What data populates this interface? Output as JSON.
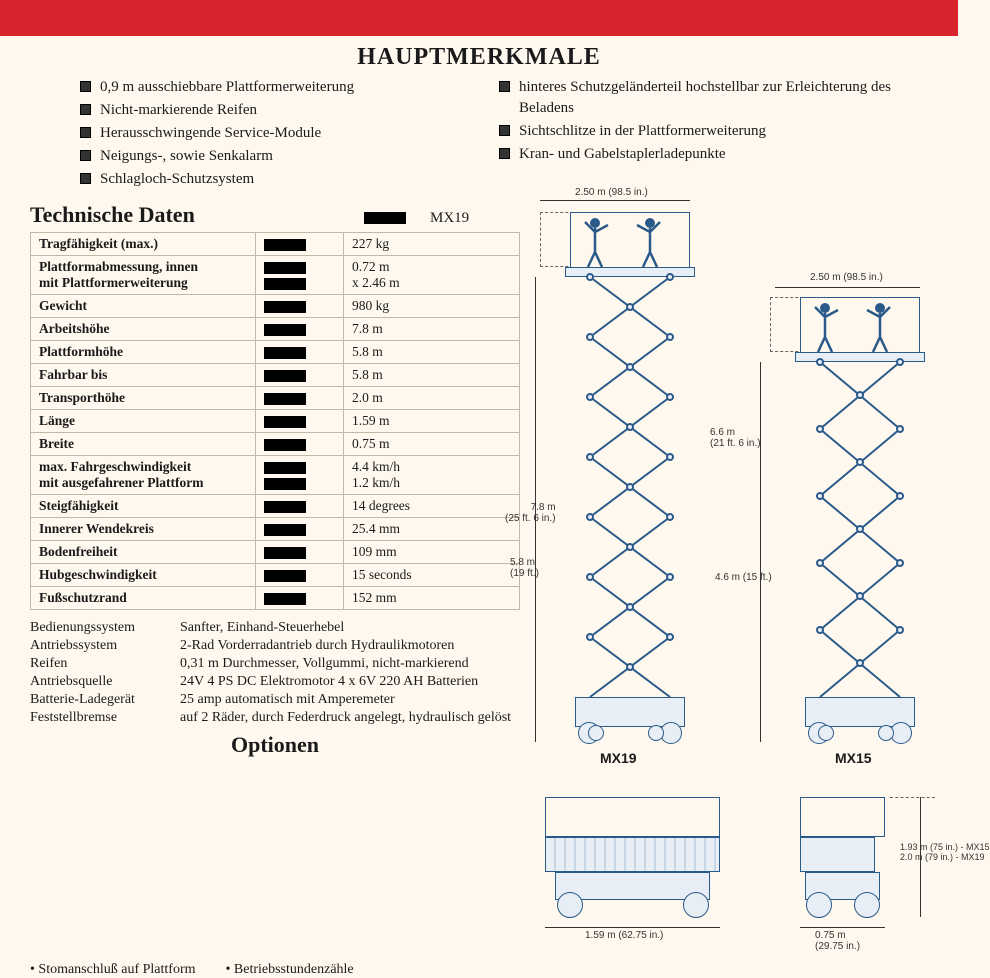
{
  "title": "HAUPTMERKMALE",
  "features_left": [
    "0,9 m ausschiebbare Plattformerweiterung",
    "Nicht-markierende Reifen",
    "Herausschwingende Service-Module",
    "Neigungs-, sowie Senkalarm",
    "Schlagloch-Schutzsystem"
  ],
  "features_right": [
    "hinteres Schutzgeländerteil hochstellbar zur Erleichterung des Beladens",
    "Sichtschlitze in der Plattformerweiterung",
    "Kran- und Gabelstaplerladepunkte"
  ],
  "tech_title": "Technische Daten",
  "tech_model": "MX19",
  "spec_rows": [
    {
      "label": "Tragfähigkeit (max.)",
      "value": "227 kg"
    },
    {
      "label": "Plattformabmessung, innen\nmit Plattformerweiterung",
      "value": "0.72 m\nx 2.46 m"
    },
    {
      "label": "Gewicht",
      "value": "980 kg"
    },
    {
      "label": "Arbeitshöhe",
      "value": "7.8 m"
    },
    {
      "label": "Plattformhöhe",
      "value": "5.8 m"
    },
    {
      "label": "Fahrbar bis",
      "value": "5.8 m"
    },
    {
      "label": "Transporthöhe",
      "value": "2.0 m"
    },
    {
      "label": "Länge",
      "value": "1.59 m"
    },
    {
      "label": "Breite",
      "value": "0.75 m"
    },
    {
      "label": "max. Fahrgeschwindigkeit\nmit ausgefahrener Plattform",
      "value": "4.4 km/h\n1.2 km/h"
    },
    {
      "label": "Steigfähigkeit",
      "value": "14 degrees"
    },
    {
      "label": "Innerer Wendekreis",
      "value": "25.4 mm"
    },
    {
      "label": "Bodenfreiheit",
      "value": "109 mm"
    },
    {
      "label": "Hubgeschwindigkeit",
      "value": "15 seconds"
    },
    {
      "label": "Fußschutzrand",
      "value": "152 mm"
    }
  ],
  "details": [
    {
      "label": "Bedienungssystem",
      "value": "Sanfter, Einhand-Steuerhebel"
    },
    {
      "label": "Antriebssystem",
      "value": "2-Rad Vorderradantrieb durch Hydraulikmotoren"
    },
    {
      "label": "Reifen",
      "value": "0,31 m Durchmesser, Vollgummi, nicht-markierend"
    },
    {
      "label": "Antriebsquelle",
      "value": "24V 4 PS DC Elektromotor 4 x 6V 220 AH Batterien"
    },
    {
      "label": "Batterie-Ladegerät",
      "value": "25 amp automatisch mit Amperemeter"
    },
    {
      "label": "Feststellbremse",
      "value": "auf 2 Räder, durch Federdruck angelegt, hydraulisch gelöst"
    }
  ],
  "optionen_title": "Optionen",
  "options": [
    "Stomanschluß auf Plattform",
    "Betriebsstundenzähle"
  ],
  "diagram": {
    "labels": {
      "width_top": "2.50 m (98.5 in.)",
      "width_right": "2.50 m (98.5 in.)",
      "height_left_1": "7.8 m",
      "height_left_1_sub": "(25 ft. 6 in.)",
      "height_left_2": "5.8 m",
      "height_left_2_sub": "(19 ft.)",
      "height_mid_1": "6.6 m",
      "height_mid_1_sub": "(21 ft. 6 in.)",
      "height_mid_2": "4.6 m (15 ft.)",
      "bottom_left": "1.59 m (62.75 in.)",
      "bottom_right_1": "0.75 m",
      "bottom_right_1_sub": "(29.75 in.)",
      "stowed_right_1": "1.93 m (75 in.) - MX15",
      "stowed_right_2": "2.0 m (79 in.) - MX19",
      "model_left": "MX19",
      "model_right": "MX15"
    },
    "colors": {
      "line": "#2a5a8a",
      "fill": "#e8eef5"
    }
  }
}
